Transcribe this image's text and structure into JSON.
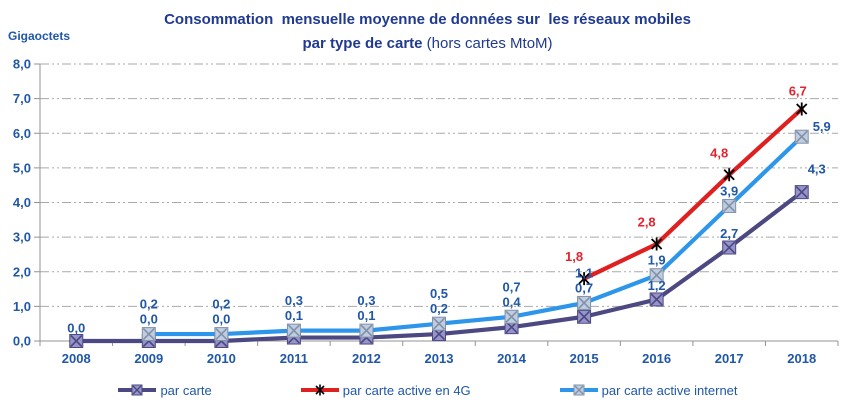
{
  "header": {
    "title_line1": "Consommation  mensuelle moyenne de données sur  les réseaux mobiles",
    "title_line2_bold": "par type de carte",
    "title_line2_rest": " (hors cartes MtoM)",
    "unit_label": "Gigaoctets"
  },
  "colors": {
    "title_text": "#203a90",
    "blue_text": "#2057a7",
    "red_text": "#e32430",
    "grid": "#a9a9a9",
    "axis": "#939393"
  },
  "chart_data": {
    "type": "line",
    "title": "Consommation mensuelle moyenne de données sur les réseaux mobiles par type de carte (hors cartes MtoM)",
    "ylabel": "Gigaoctets",
    "xlabel": "",
    "ylim": [
      0,
      8
    ],
    "ytick_step": 1,
    "decimal_separator": ",",
    "grid": "horizontal dash-dot",
    "legend_position": "bottom",
    "categories": [
      "2008",
      "2009",
      "2010",
      "2011",
      "2012",
      "2013",
      "2014",
      "2015",
      "2016",
      "2017",
      "2018"
    ],
    "series": [
      {
        "name": "par carte",
        "role": "purple",
        "values": [
          0.0,
          0.0,
          0.0,
          0.1,
          0.1,
          0.2,
          0.4,
          0.7,
          1.2,
          2.7,
          4.3
        ],
        "color": "#4b4882",
        "marker": "boxed-x",
        "marker_fill": "#9694c8",
        "marker_stroke": "#4b4882",
        "label_color": "#2057a7"
      },
      {
        "name": "par carte active en 4G",
        "role": "red",
        "values": [
          null,
          null,
          null,
          null,
          null,
          null,
          null,
          1.8,
          2.8,
          4.8,
          6.7
        ],
        "color": "#df2020",
        "marker": "star-x",
        "marker_fill": "#000000",
        "marker_stroke": "#000000",
        "label_color": "#e32430"
      },
      {
        "name": "par carte active internet",
        "role": "blue",
        "values": [
          null,
          0.2,
          0.2,
          0.3,
          0.3,
          0.5,
          0.7,
          1.1,
          1.9,
          3.9,
          5.9
        ],
        "color": "#2d96eb",
        "marker": "boxed-x",
        "marker_fill": "#becde1",
        "marker_stroke": "#8291a5",
        "label_color": "#2057a7"
      }
    ],
    "y_tick_labels": [
      "0,0",
      "1,0",
      "2,0",
      "3,0",
      "4,0",
      "5,0",
      "6,0",
      "7,0",
      "8,0"
    ]
  }
}
